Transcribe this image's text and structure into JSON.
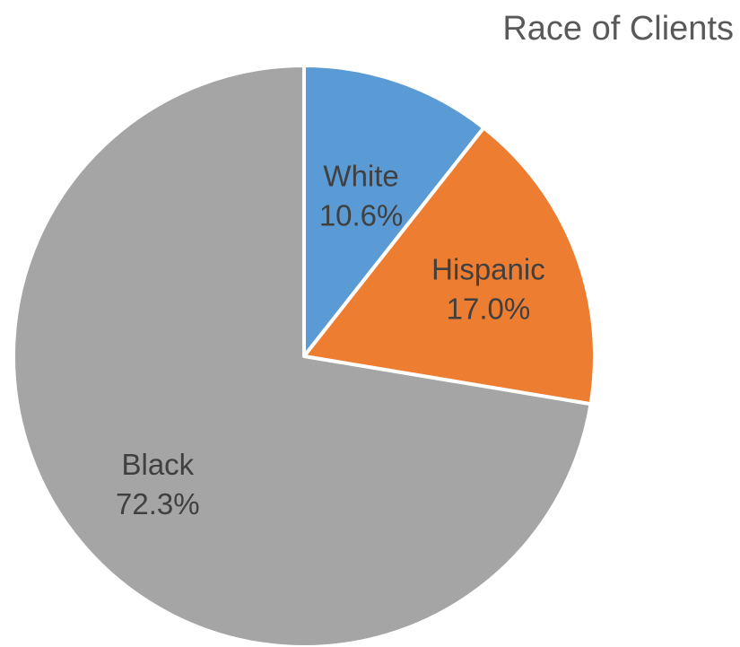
{
  "chart_data": {
    "type": "pie",
    "title": "Race of Clients",
    "slices": [
      {
        "label": "White",
        "value": 10.6,
        "value_label": "10.6%",
        "color": "#5B9BD5"
      },
      {
        "label": "Hispanic",
        "value": 17.0,
        "value_label": "17.0%",
        "color": "#ED7D31"
      },
      {
        "label": "Black",
        "value": 72.3,
        "value_label": "72.3%",
        "color": "#A5A5A5"
      }
    ],
    "legend": "none",
    "start": "top",
    "direction": "clockwise"
  }
}
